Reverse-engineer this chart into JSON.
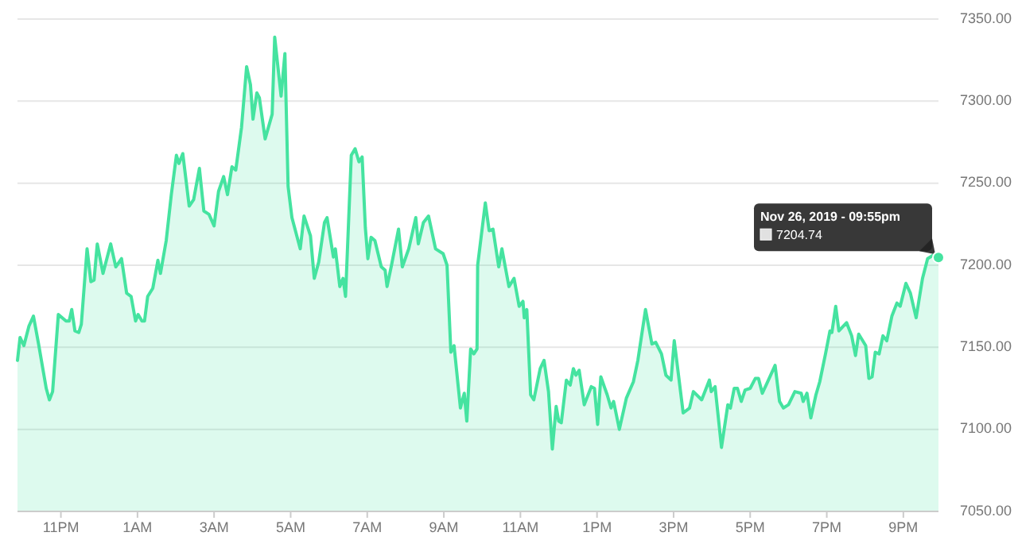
{
  "chart_data": {
    "type": "area",
    "x": [
      "2019-11-25T21:52",
      "2019-11-25T21:56",
      "2019-11-25T22:02",
      "2019-11-25T22:10",
      "2019-11-25T22:17",
      "2019-11-25T22:25",
      "2019-11-25T22:37",
      "2019-11-25T22:42",
      "2019-11-25T22:47",
      "2019-11-25T22:56",
      "2019-11-25T23:08",
      "2019-11-25T23:13",
      "2019-11-25T23:17",
      "2019-11-25T23:22",
      "2019-11-25T23:28",
      "2019-11-25T23:32",
      "2019-11-25T23:41",
      "2019-11-25T23:47",
      "2019-11-25T23:52",
      "2019-11-25T23:57",
      "2019-11-26T00:06",
      "2019-11-26T00:18",
      "2019-11-26T00:26",
      "2019-11-26T00:35",
      "2019-11-26T00:43",
      "2019-11-26T00:50",
      "2019-11-26T00:57",
      "2019-11-26T01:01",
      "2019-11-26T01:07",
      "2019-11-26T01:11",
      "2019-11-26T01:16",
      "2019-11-26T01:24",
      "2019-11-26T01:32",
      "2019-11-26T01:36",
      "2019-11-26T01:45",
      "2019-11-26T01:53",
      "2019-11-26T02:01",
      "2019-11-26T02:05",
      "2019-11-26T02:11",
      "2019-11-26T02:21",
      "2019-11-26T02:28",
      "2019-11-26T02:37",
      "2019-11-26T02:44",
      "2019-11-26T02:52",
      "2019-11-26T03:00",
      "2019-11-26T03:07",
      "2019-11-26T03:15",
      "2019-11-26T03:21",
      "2019-11-26T03:28",
      "2019-11-26T03:34",
      "2019-11-26T03:43",
      "2019-11-26T03:51",
      "2019-11-26T03:57",
      "2019-11-26T04:01",
      "2019-11-26T04:07",
      "2019-11-26T04:11",
      "2019-11-26T04:20",
      "2019-11-26T04:31",
      "2019-11-26T04:35",
      "2019-11-26T04:45",
      "2019-11-26T04:51",
      "2019-11-26T04:56",
      "2019-11-26T05:02",
      "2019-11-26T05:15",
      "2019-11-26T05:21",
      "2019-11-26T05:31",
      "2019-11-26T05:37",
      "2019-11-26T05:44",
      "2019-11-26T05:53",
      "2019-11-26T05:57",
      "2019-11-26T06:07",
      "2019-11-26T06:10",
      "2019-11-26T06:17",
      "2019-11-26T06:22",
      "2019-11-26T06:26",
      "2019-11-26T06:35",
      "2019-11-26T06:41",
      "2019-11-26T06:47",
      "2019-11-26T06:52",
      "2019-11-26T06:57",
      "2019-11-26T07:01",
      "2019-11-26T07:06",
      "2019-11-26T07:12",
      "2019-11-26T07:22",
      "2019-11-26T07:28",
      "2019-11-26T07:31",
      "2019-11-26T07:38",
      "2019-11-26T07:49",
      "2019-11-26T07:55",
      "2019-11-26T08:05",
      "2019-11-26T08:16",
      "2019-11-26T08:20",
      "2019-11-26T08:28",
      "2019-11-26T08:36",
      "2019-11-26T08:47",
      "2019-11-26T08:59",
      "2019-11-26T09:05",
      "2019-11-26T09:11",
      "2019-11-26T09:16",
      "2019-11-26T09:26",
      "2019-11-26T09:32",
      "2019-11-26T09:36",
      "2019-11-26T09:42",
      "2019-11-26T09:47",
      "2019-11-26T09:52",
      "2019-11-26T09:53",
      "2019-11-26T10:05",
      "2019-11-26T10:11",
      "2019-11-26T10:17",
      "2019-11-26T10:26",
      "2019-11-26T10:31",
      "2019-11-26T10:42",
      "2019-11-26T10:50",
      "2019-11-26T10:58",
      "2019-11-26T11:04",
      "2019-11-26T11:06",
      "2019-11-26T11:10",
      "2019-11-26T11:16",
      "2019-11-26T11:21",
      "2019-11-26T11:31",
      "2019-11-26T11:37",
      "2019-11-26T11:44",
      "2019-11-26T11:50",
      "2019-11-26T11:56",
      "2019-11-26T12:00",
      "2019-11-26T12:04",
      "2019-11-26T12:12",
      "2019-11-26T12:18",
      "2019-11-26T12:23",
      "2019-11-26T12:27",
      "2019-11-26T12:32",
      "2019-11-26T12:40",
      "2019-11-26T12:51",
      "2019-11-26T12:56",
      "2019-11-26T13:01",
      "2019-11-26T13:06",
      "2019-11-26T13:16",
      "2019-11-26T13:22",
      "2019-11-26T13:26",
      "2019-11-26T13:35",
      "2019-11-26T13:46",
      "2019-11-26T13:57",
      "2019-11-26T14:04",
      "2019-11-26T14:16",
      "2019-11-26T14:26",
      "2019-11-26T14:32",
      "2019-11-26T14:41",
      "2019-11-26T14:48",
      "2019-11-26T14:56",
      "2019-11-26T15:01",
      "2019-11-26T15:15",
      "2019-11-26T15:25",
      "2019-11-26T15:31",
      "2019-11-26T15:44",
      "2019-11-26T15:56",
      "2019-11-26T15:59",
      "2019-11-26T16:05",
      "2019-11-26T16:15",
      "2019-11-26T16:25",
      "2019-11-26T16:29",
      "2019-11-26T16:35",
      "2019-11-26T16:40",
      "2019-11-26T16:46",
      "2019-11-26T16:52",
      "2019-11-26T17:00",
      "2019-11-26T17:08",
      "2019-11-26T17:13",
      "2019-11-26T17:19",
      "2019-11-26T17:25",
      "2019-11-26T17:39",
      "2019-11-26T17:46",
      "2019-11-26T17:52",
      "2019-11-26T18:00",
      "2019-11-26T18:10",
      "2019-11-26T18:20",
      "2019-11-26T18:23",
      "2019-11-26T18:29",
      "2019-11-26T18:35",
      "2019-11-26T18:43",
      "2019-11-26T18:49",
      "2019-11-26T18:58",
      "2019-11-26T19:05",
      "2019-11-26T19:08",
      "2019-11-26T19:14",
      "2019-11-26T19:19",
      "2019-11-26T19:31",
      "2019-11-26T19:39",
      "2019-11-26T19:45",
      "2019-11-26T19:50",
      "2019-11-26T20:01",
      "2019-11-26T20:06",
      "2019-11-26T20:11",
      "2019-11-26T20:16",
      "2019-11-26T20:22",
      "2019-11-26T20:28",
      "2019-11-26T20:34",
      "2019-11-26T20:42",
      "2019-11-26T20:50",
      "2019-11-26T20:55",
      "2019-11-26T21:04",
      "2019-11-26T21:11",
      "2019-11-26T21:20",
      "2019-11-26T21:30",
      "2019-11-26T21:38",
      "2019-11-26T21:46",
      "2019-11-26T21:55"
    ],
    "series": [
      {
        "color": "#45e3a0",
        "values": [
          7142,
          7156,
          7151,
          7163,
          7169,
          7152,
          7125,
          7118,
          7123,
          7170,
          7166,
          7166,
          7173,
          7160,
          7159,
          7164,
          7210,
          7190,
          7191,
          7213,
          7195,
          7213,
          7199,
          7204,
          7183,
          7181,
          7166,
          7170,
          7166,
          7166,
          7181,
          7186,
          7203,
          7195,
          7215,
          7243,
          7267,
          7262,
          7268,
          7236,
          7240,
          7259,
          7233,
          7231,
          7224,
          7245,
          7254,
          7243,
          7260,
          7258,
          7284,
          7321,
          7310,
          7289,
          7305,
          7302,
          7277,
          7292,
          7339,
          7303,
          7329,
          7248,
          7229,
          7210,
          7230,
          7218,
          7192,
          7202,
          7226,
          7229,
          7205,
          7210,
          7187,
          7192,
          7181,
          7267,
          7271,
          7263,
          7266,
          7223,
          7204,
          7217,
          7215,
          7199,
          7197,
          7187,
          7200,
          7222,
          7199,
          7210,
          7229,
          7213,
          7226,
          7230,
          7210,
          7207,
          7200,
          7147,
          7151,
          7113,
          7122,
          7105,
          7149,
          7146,
          7149,
          7200,
          7238,
          7221,
          7222,
          7199,
          7210,
          7187,
          7192,
          7175,
          7178,
          7168,
          7173,
          7121,
          7118,
          7137,
          7142,
          7123,
          7088,
          7114,
          7105,
          7104,
          7130,
          7127,
          7137,
          7133,
          7136,
          7115,
          7126,
          7125,
          7103,
          7132,
          7121,
          7113,
          7117,
          7100,
          7119,
          7129,
          7142,
          7173,
          7152,
          7153,
          7146,
          7133,
          7130,
          7154,
          7110,
          7113,
          7123,
          7118,
          7130,
          7123,
          7126,
          7089,
          7115,
          7113,
          7125,
          7125,
          7117,
          7124,
          7125,
          7131,
          7131,
          7122,
          7127,
          7139,
          7117,
          7113,
          7115,
          7123,
          7122,
          7117,
          7122,
          7107,
          7121,
          7129,
          7146,
          7160,
          7159,
          7175,
          7160,
          7165,
          7157,
          7145,
          7158,
          7151,
          7131,
          7132,
          7147,
          7146,
          7157,
          7154,
          7169,
          7177,
          7175,
          7189,
          7183,
          7168,
          7192,
          7204,
          7206,
          7204.74
        ]
      }
    ],
    "xlim": [
      "2019-11-25T21:52",
      "2019-11-26T21:55"
    ],
    "xticks": [
      {
        "value": "2019-11-25T23:00",
        "label": "11PM"
      },
      {
        "value": "2019-11-26T01:00",
        "label": "1AM"
      },
      {
        "value": "2019-11-26T03:00",
        "label": "3AM"
      },
      {
        "value": "2019-11-26T05:00",
        "label": "5AM"
      },
      {
        "value": "2019-11-26T07:00",
        "label": "7AM"
      },
      {
        "value": "2019-11-26T09:00",
        "label": "9AM"
      },
      {
        "value": "2019-11-26T11:00",
        "label": "11AM"
      },
      {
        "value": "2019-11-26T13:00",
        "label": "1PM"
      },
      {
        "value": "2019-11-26T15:00",
        "label": "3PM"
      },
      {
        "value": "2019-11-26T17:00",
        "label": "5PM"
      },
      {
        "value": "2019-11-26T19:00",
        "label": "7PM"
      },
      {
        "value": "2019-11-26T21:00",
        "label": "9PM"
      }
    ],
    "ylim": [
      7050,
      7350
    ],
    "yticks": [
      {
        "value": 7050,
        "label": "7050.00"
      },
      {
        "value": 7100,
        "label": "7100.00"
      },
      {
        "value": 7150,
        "label": "7150.00"
      },
      {
        "value": 7200,
        "label": "7200.00"
      },
      {
        "value": 7250,
        "label": "7250.00"
      },
      {
        "value": 7300,
        "label": "7300.00"
      },
      {
        "value": 7350,
        "label": "7350.00"
      }
    ],
    "grid": "y",
    "annotations": [
      "Nov 26, 2019 - 09:55pm",
      "7204.74"
    ]
  }
}
